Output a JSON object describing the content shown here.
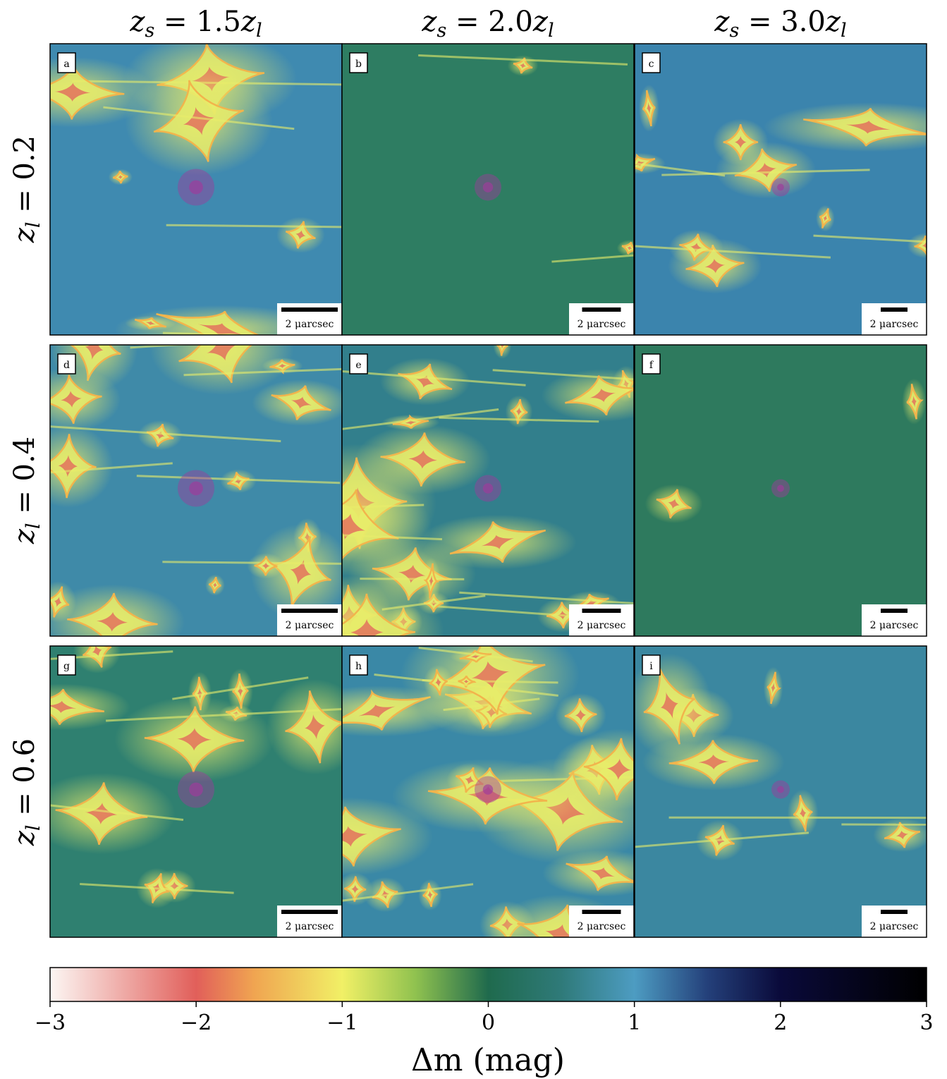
{
  "chart_data": {
    "type": "heatmap",
    "description_kind": "microlensing magnification maps grid",
    "columns": [
      {
        "label": "z_s = 1.5z_l",
        "lhs": "z",
        "lhs_sub": "s",
        "rhs": "1.5",
        "rhs_var": "z",
        "rhs_sub": "l"
      },
      {
        "label": "z_s = 2.0z_l",
        "lhs": "z",
        "lhs_sub": "s",
        "rhs": "2.0",
        "rhs_var": "z",
        "rhs_sub": "l"
      },
      {
        "label": "z_s = 3.0z_l",
        "lhs": "z",
        "lhs_sub": "s",
        "rhs": "3.0",
        "rhs_var": "z",
        "rhs_sub": "l"
      }
    ],
    "rows": [
      {
        "label": "z_l = 0.2",
        "lhs": "z",
        "lhs_sub": "l",
        "rhs": "0.2"
      },
      {
        "label": "z_l = 0.4",
        "lhs": "z",
        "lhs_sub": "l",
        "rhs": "0.4"
      },
      {
        "label": "z_l = 0.6",
        "lhs": "z",
        "lhs_sub": "l",
        "rhs": "0.6"
      }
    ],
    "panels": [
      {
        "id": "a",
        "scalebar": "2 μarcsec",
        "background": "#3f8ab0",
        "source_size": "large"
      },
      {
        "id": "b",
        "scalebar": "2 μarcsec",
        "background": "#2e7d62",
        "source_size": "medium"
      },
      {
        "id": "c",
        "scalebar": "2 μarcsec",
        "background": "#3b84ad",
        "source_size": "small"
      },
      {
        "id": "d",
        "scalebar": "2 μarcsec",
        "background": "#3f8aa8",
        "source_size": "large"
      },
      {
        "id": "e",
        "scalebar": "2 μarcsec",
        "background": "#327f8c",
        "source_size": "medium"
      },
      {
        "id": "f",
        "scalebar": "2 μarcsec",
        "background": "#2e7a5e",
        "source_size": "small"
      },
      {
        "id": "g",
        "scalebar": "2 μarcsec",
        "background": "#2f8070",
        "source_size": "large"
      },
      {
        "id": "h",
        "scalebar": "2 μarcsec",
        "background": "#3a88a6",
        "source_size": "medium"
      },
      {
        "id": "i",
        "scalebar": "2 μarcsec",
        "background": "#3b87a0",
        "source_size": "small"
      }
    ],
    "colorbar": {
      "label_symbol": "Δm",
      "label_unit": "(mag)",
      "min": -3,
      "max": 3,
      "ticks": [
        "−3",
        "−2",
        "−1",
        "0",
        "1",
        "2",
        "3"
      ],
      "tick_values": [
        -3,
        -2,
        -1,
        0,
        1,
        2,
        3
      ],
      "colormap_stops": [
        {
          "value": -3,
          "color": "#fcf6f3"
        },
        {
          "value": -2,
          "color": "#e15f5a"
        },
        {
          "value": -1.6,
          "color": "#f0a551"
        },
        {
          "value": -1,
          "color": "#f1f066"
        },
        {
          "value": -0.5,
          "color": "#90c24f"
        },
        {
          "value": 0,
          "color": "#1f6a4d"
        },
        {
          "value": 0.5,
          "color": "#2f7a79"
        },
        {
          "value": 1,
          "color": "#4d9cc2"
        },
        {
          "value": 1.5,
          "color": "#24407a"
        },
        {
          "value": 2,
          "color": "#0a0a3a"
        },
        {
          "value": 3,
          "color": "#000000"
        }
      ]
    }
  },
  "colors": {
    "caustic_core": "#e2585b",
    "caustic_mid": "#f2b44c",
    "caustic_outer": "#e8ec6a",
    "source_disk": "#a03a9b"
  }
}
